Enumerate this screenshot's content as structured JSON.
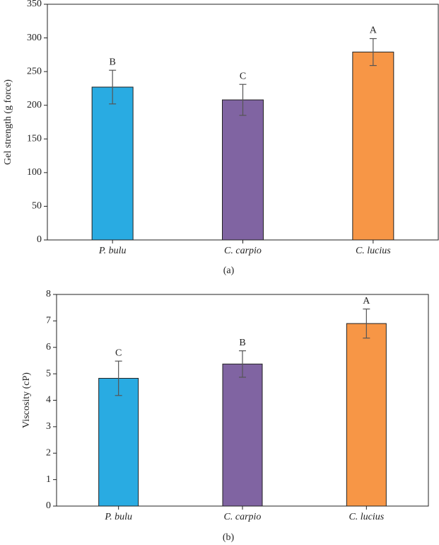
{
  "chart_data": [
    {
      "type": "bar",
      "ylabel": "Gel strength (g force)",
      "caption": "(a)",
      "categories": [
        "P. bulu",
        "C. carpio",
        "C. lucius"
      ],
      "values": [
        227,
        208,
        279
      ],
      "errors": [
        25,
        23,
        20
      ],
      "annotations": [
        "B",
        "C",
        "A"
      ],
      "colors": [
        "#29abe2",
        "#8064a2",
        "#f79646"
      ],
      "ylim": [
        0,
        350
      ],
      "yticks": [
        0,
        50,
        100,
        150,
        200,
        250,
        300,
        350
      ]
    },
    {
      "type": "bar",
      "ylabel": "Viscosity (cP)",
      "caption": "(b)",
      "categories": [
        "P. bulu",
        "C. carpio",
        "C. lucius"
      ],
      "values": [
        4.83,
        5.37,
        6.9
      ],
      "errors": [
        0.65,
        0.5,
        0.55
      ],
      "annotations": [
        "C",
        "B",
        "A"
      ],
      "colors": [
        "#29abe2",
        "#8064a2",
        "#f79646"
      ],
      "ylim": [
        0,
        8
      ],
      "yticks": [
        0,
        1,
        2,
        3,
        4,
        5,
        6,
        7,
        8
      ]
    }
  ]
}
